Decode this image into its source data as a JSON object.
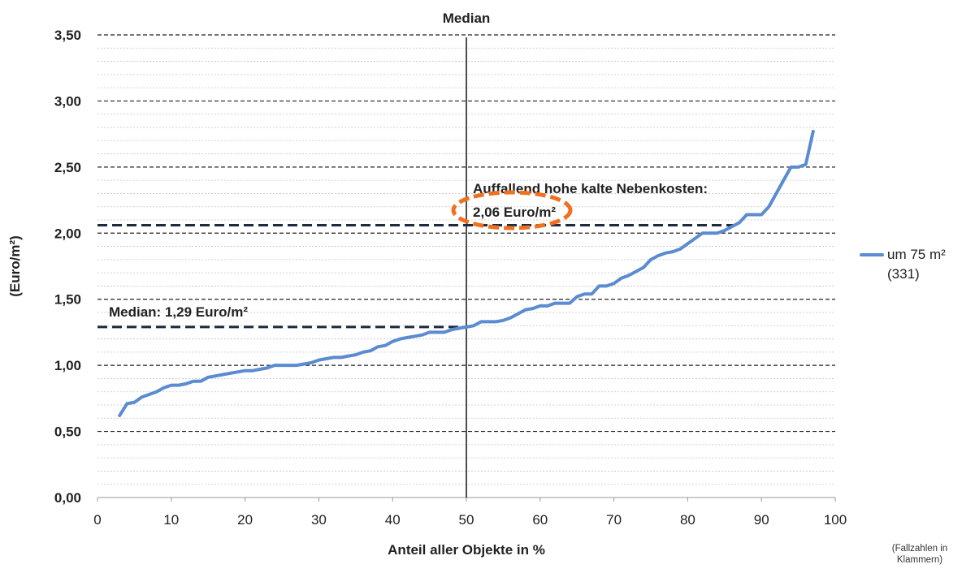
{
  "chart_data": {
    "type": "line",
    "title": "",
    "xlabel": "Anteil aller Objekte in %",
    "ylabel": "(Euro/m²)",
    "xlim": [
      0,
      100
    ],
    "ylim": [
      0,
      3.5
    ],
    "x_ticks": [
      0,
      10,
      20,
      30,
      40,
      50,
      60,
      70,
      80,
      90,
      100
    ],
    "y_ticks": [
      0,
      0.5,
      1.0,
      1.5,
      2.0,
      2.5,
      3.0,
      3.5
    ],
    "y_tick_labels": [
      "0,00",
      "0,50",
      "1,00",
      "1,50",
      "2,00",
      "2,50",
      "3,00",
      "3,50"
    ],
    "grid": true,
    "legend_position": "right",
    "series": [
      {
        "name": "um 75 m²",
        "count_label": "(331)",
        "color": "#5b8bd0",
        "x": [
          3,
          4,
          5,
          6,
          7,
          8,
          9,
          10,
          11,
          12,
          13,
          14,
          15,
          16,
          17,
          18,
          19,
          20,
          21,
          22,
          23,
          24,
          25,
          26,
          27,
          28,
          29,
          30,
          31,
          32,
          33,
          34,
          35,
          36,
          37,
          38,
          39,
          40,
          41,
          42,
          43,
          44,
          45,
          46,
          47,
          48,
          49,
          50,
          51,
          52,
          53,
          54,
          55,
          56,
          57,
          58,
          59,
          60,
          61,
          62,
          63,
          64,
          65,
          66,
          67,
          68,
          69,
          70,
          71,
          72,
          73,
          74,
          75,
          76,
          77,
          78,
          79,
          80,
          81,
          82,
          83,
          84,
          85,
          86,
          87,
          88,
          89,
          90,
          91,
          92,
          93,
          94,
          95,
          96,
          97
        ],
        "values": [
          0.62,
          0.71,
          0.72,
          0.76,
          0.78,
          0.8,
          0.83,
          0.85,
          0.85,
          0.86,
          0.88,
          0.88,
          0.91,
          0.92,
          0.93,
          0.94,
          0.95,
          0.96,
          0.96,
          0.97,
          0.98,
          1.0,
          1.0,
          1.0,
          1.0,
          1.01,
          1.02,
          1.04,
          1.05,
          1.06,
          1.06,
          1.07,
          1.08,
          1.1,
          1.11,
          1.14,
          1.15,
          1.18,
          1.2,
          1.21,
          1.22,
          1.23,
          1.25,
          1.25,
          1.25,
          1.27,
          1.28,
          1.29,
          1.3,
          1.33,
          1.33,
          1.33,
          1.34,
          1.36,
          1.39,
          1.42,
          1.43,
          1.45,
          1.45,
          1.47,
          1.47,
          1.47,
          1.52,
          1.54,
          1.54,
          1.6,
          1.6,
          1.62,
          1.66,
          1.68,
          1.71,
          1.74,
          1.8,
          1.83,
          1.85,
          1.86,
          1.88,
          1.92,
          1.96,
          2.0,
          2.0,
          2.0,
          2.02,
          2.05,
          2.08,
          2.14,
          2.14,
          2.14,
          2.2,
          2.3,
          2.4,
          2.5,
          2.5,
          2.52,
          2.77
        ]
      }
    ],
    "annotations": [
      {
        "type": "vline",
        "x": 50,
        "label": "Median"
      },
      {
        "type": "hline",
        "y": 1.29,
        "label": "Median: 1,29 Euro/m²"
      },
      {
        "type": "hline",
        "y": 2.06,
        "label": "Auffallend hohe kalte Nebenkosten:",
        "value_label": "2,06 Euro/m²",
        "highlight_color": "#f07020"
      }
    ]
  },
  "footnote": "(Fallzahlen in Klammern)"
}
